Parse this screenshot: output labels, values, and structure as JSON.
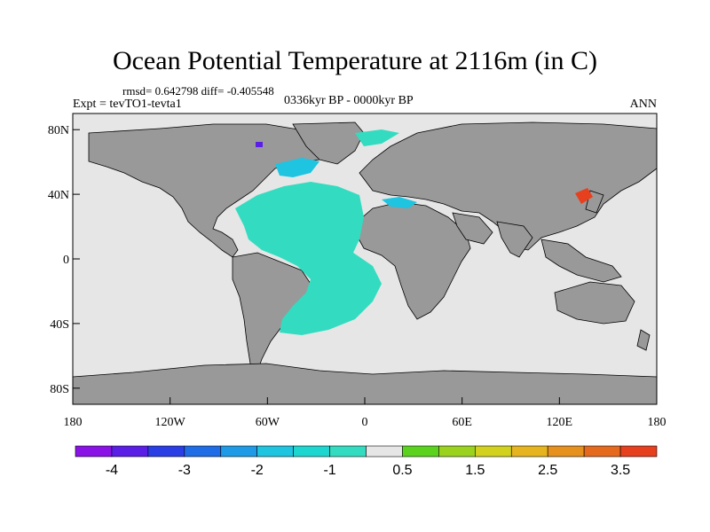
{
  "title": "Ocean Potential Temperature at 2116m (in C)",
  "stats": "rmsd= 0.642798 diff= -0.405548",
  "experiment": "Expt = tevTO1-tevta1",
  "period": "0336kyr BP - 0000kyr BP",
  "season": "ANN",
  "axes": {
    "y_ticks": [
      {
        "label": "80N",
        "value": 80
      },
      {
        "label": "40N",
        "value": 40
      },
      {
        "label": "0",
        "value": 0
      },
      {
        "label": "40S",
        "value": -40
      },
      {
        "label": "80S",
        "value": -80
      }
    ],
    "x_ticks": [
      {
        "label": "180",
        "value": -180
      },
      {
        "label": "120W",
        "value": -120
      },
      {
        "label": "60W",
        "value": -60
      },
      {
        "label": "0",
        "value": 0
      },
      {
        "label": "60E",
        "value": 60
      },
      {
        "label": "120E",
        "value": 120
      },
      {
        "label": "180",
        "value": 180
      }
    ],
    "lat_range": [
      -90,
      90
    ],
    "lon_range": [
      -180,
      180
    ]
  },
  "colors": {
    "land": "#999999",
    "ocean_neutral": "#e6e6e6",
    "anomaly_cold": "#33dcc0",
    "anomaly_mid": "#1ec4e0",
    "anomaly_warm": "#e6401e"
  },
  "colorbar": {
    "colors": [
      "#8a12e6",
      "#5a1ee6",
      "#2a3ee6",
      "#1e6ce6",
      "#1e9ae6",
      "#1ec4e0",
      "#1ed6d0",
      "#33dcc0",
      "#e6e6e6",
      "#5ad21e",
      "#9ad21e",
      "#d2d21e",
      "#e6b41e",
      "#e6901e",
      "#e66a1e",
      "#e6401e"
    ],
    "labels": [
      {
        "text": "-4",
        "index": 1
      },
      {
        "text": "-3",
        "index": 3
      },
      {
        "text": "-2",
        "index": 5
      },
      {
        "text": "-1",
        "index": 7
      },
      {
        "text": "0.5",
        "index": 9
      },
      {
        "text": "1.5",
        "index": 11
      },
      {
        "text": "2.5",
        "index": 13
      },
      {
        "text": "3.5",
        "index": 15
      }
    ]
  }
}
